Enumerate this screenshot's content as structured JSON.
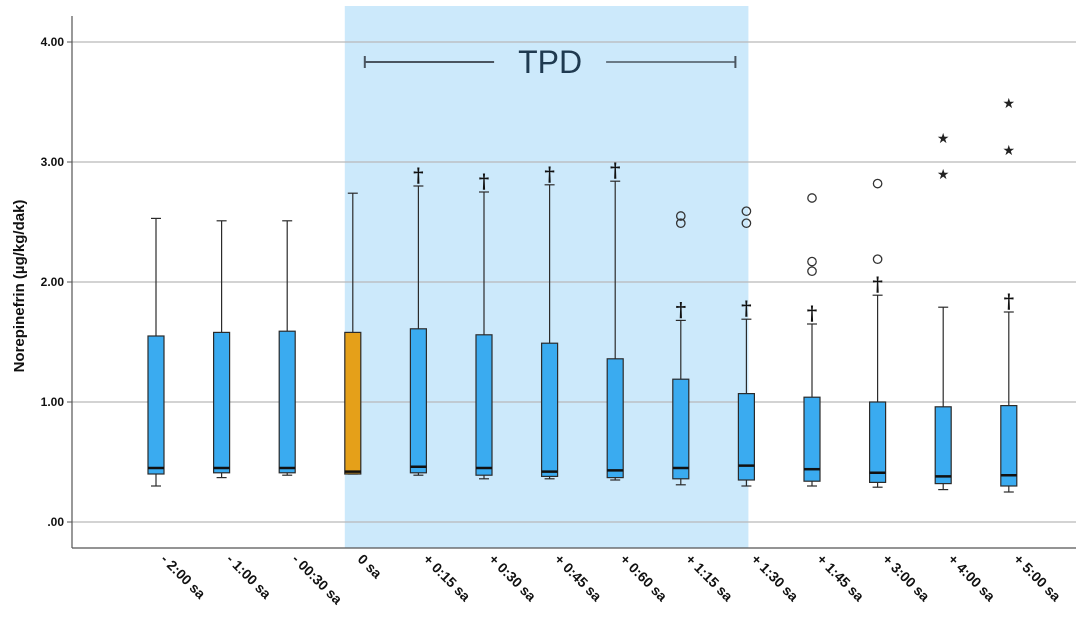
{
  "chart_data": {
    "type": "box",
    "ylabel": "Norepinefrin (µg/kg/dak)",
    "ylim": [
      -0.2,
      4.3
    ],
    "yticks": [
      {
        "value": 0,
        "label": ".00"
      },
      {
        "value": 1,
        "label": "1.00"
      },
      {
        "value": 2,
        "label": "2.00"
      },
      {
        "value": 3,
        "label": "3.00"
      },
      {
        "value": 4,
        "label": "4.00"
      }
    ],
    "grid": true,
    "shaded_region": {
      "label": "TPD",
      "from_category": "0 sa",
      "to_category": "+ 1:30 sa",
      "color": "#cce9fb",
      "bracket_color": "#4a5560"
    },
    "colors": {
      "box": "#3aabf0",
      "highlight_box": "#e5a019",
      "outline": "#2b2b2b"
    },
    "boxes": [
      {
        "category": "- 2:00 sa",
        "whisker_low": 0.3,
        "q1": 0.4,
        "median": 0.45,
        "q3": 1.55,
        "whisker_high": 2.53,
        "highlight": false,
        "dagger": false,
        "outliers": []
      },
      {
        "category": "- 1:00 sa",
        "whisker_low": 0.37,
        "q1": 0.41,
        "median": 0.45,
        "q3": 1.58,
        "whisker_high": 2.51,
        "highlight": false,
        "dagger": false,
        "outliers": []
      },
      {
        "category": "- 00:30 sa",
        "whisker_low": 0.39,
        "q1": 0.41,
        "median": 0.45,
        "q3": 1.59,
        "whisker_high": 2.51,
        "highlight": false,
        "dagger": false,
        "outliers": []
      },
      {
        "category": "0 sa",
        "whisker_low": 0.4,
        "q1": 0.4,
        "median": 0.42,
        "q3": 1.58,
        "whisker_high": 2.74,
        "highlight": true,
        "dagger": false,
        "outliers": []
      },
      {
        "category": "+ 0:15 sa",
        "whisker_low": 0.39,
        "q1": 0.41,
        "median": 0.46,
        "q3": 1.61,
        "whisker_high": 2.8,
        "highlight": false,
        "dagger": true,
        "outliers": []
      },
      {
        "category": "+ 0:30 sa",
        "whisker_low": 0.36,
        "q1": 0.39,
        "median": 0.45,
        "q3": 1.56,
        "whisker_high": 2.75,
        "highlight": false,
        "dagger": true,
        "outliers": []
      },
      {
        "category": "+ 0:45 sa",
        "whisker_low": 0.36,
        "q1": 0.38,
        "median": 0.42,
        "q3": 1.49,
        "whisker_high": 2.81,
        "highlight": false,
        "dagger": true,
        "outliers": []
      },
      {
        "category": "+ 0:60 sa",
        "whisker_low": 0.35,
        "q1": 0.37,
        "median": 0.43,
        "q3": 1.36,
        "whisker_high": 2.84,
        "highlight": false,
        "dagger": true,
        "outliers": []
      },
      {
        "category": "+ 1:15 sa",
        "whisker_low": 0.31,
        "q1": 0.36,
        "median": 0.45,
        "q3": 1.19,
        "whisker_high": 1.68,
        "highlight": false,
        "dagger": true,
        "outliers": [
          {
            "value": 2.49,
            "symbol": "circle"
          },
          {
            "value": 2.55,
            "symbol": "circle"
          }
        ]
      },
      {
        "category": "+ 1:30 sa",
        "whisker_low": 0.3,
        "q1": 0.35,
        "median": 0.47,
        "q3": 1.07,
        "whisker_high": 1.69,
        "highlight": false,
        "dagger": true,
        "outliers": [
          {
            "value": 2.49,
            "symbol": "circle"
          },
          {
            "value": 2.59,
            "symbol": "circle"
          }
        ]
      },
      {
        "category": "+ 1:45 sa",
        "whisker_low": 0.3,
        "q1": 0.34,
        "median": 0.44,
        "q3": 1.04,
        "whisker_high": 1.65,
        "highlight": false,
        "dagger": true,
        "outliers": [
          {
            "value": 2.09,
            "symbol": "circle"
          },
          {
            "value": 2.17,
            "symbol": "circle"
          },
          {
            "value": 2.7,
            "symbol": "circle"
          }
        ]
      },
      {
        "category": "+ 3:00 sa",
        "whisker_low": 0.29,
        "q1": 0.33,
        "median": 0.41,
        "q3": 1.0,
        "whisker_high": 1.89,
        "highlight": false,
        "dagger": true,
        "outliers": [
          {
            "value": 2.19,
            "symbol": "circle"
          },
          {
            "value": 2.82,
            "symbol": "circle"
          }
        ]
      },
      {
        "category": "+ 4:00 sa",
        "whisker_low": 0.27,
        "q1": 0.32,
        "median": 0.38,
        "q3": 0.96,
        "whisker_high": 1.79,
        "highlight": false,
        "dagger": false,
        "outliers": [
          {
            "value": 2.9,
            "symbol": "star"
          },
          {
            "value": 3.2,
            "symbol": "star"
          }
        ]
      },
      {
        "category": "+ 5:00 sa",
        "whisker_low": 0.25,
        "q1": 0.3,
        "median": 0.39,
        "q3": 0.97,
        "whisker_high": 1.75,
        "highlight": false,
        "dagger": true,
        "outliers": [
          {
            "value": 3.1,
            "symbol": "star"
          },
          {
            "value": 3.49,
            "symbol": "star"
          }
        ]
      }
    ]
  }
}
